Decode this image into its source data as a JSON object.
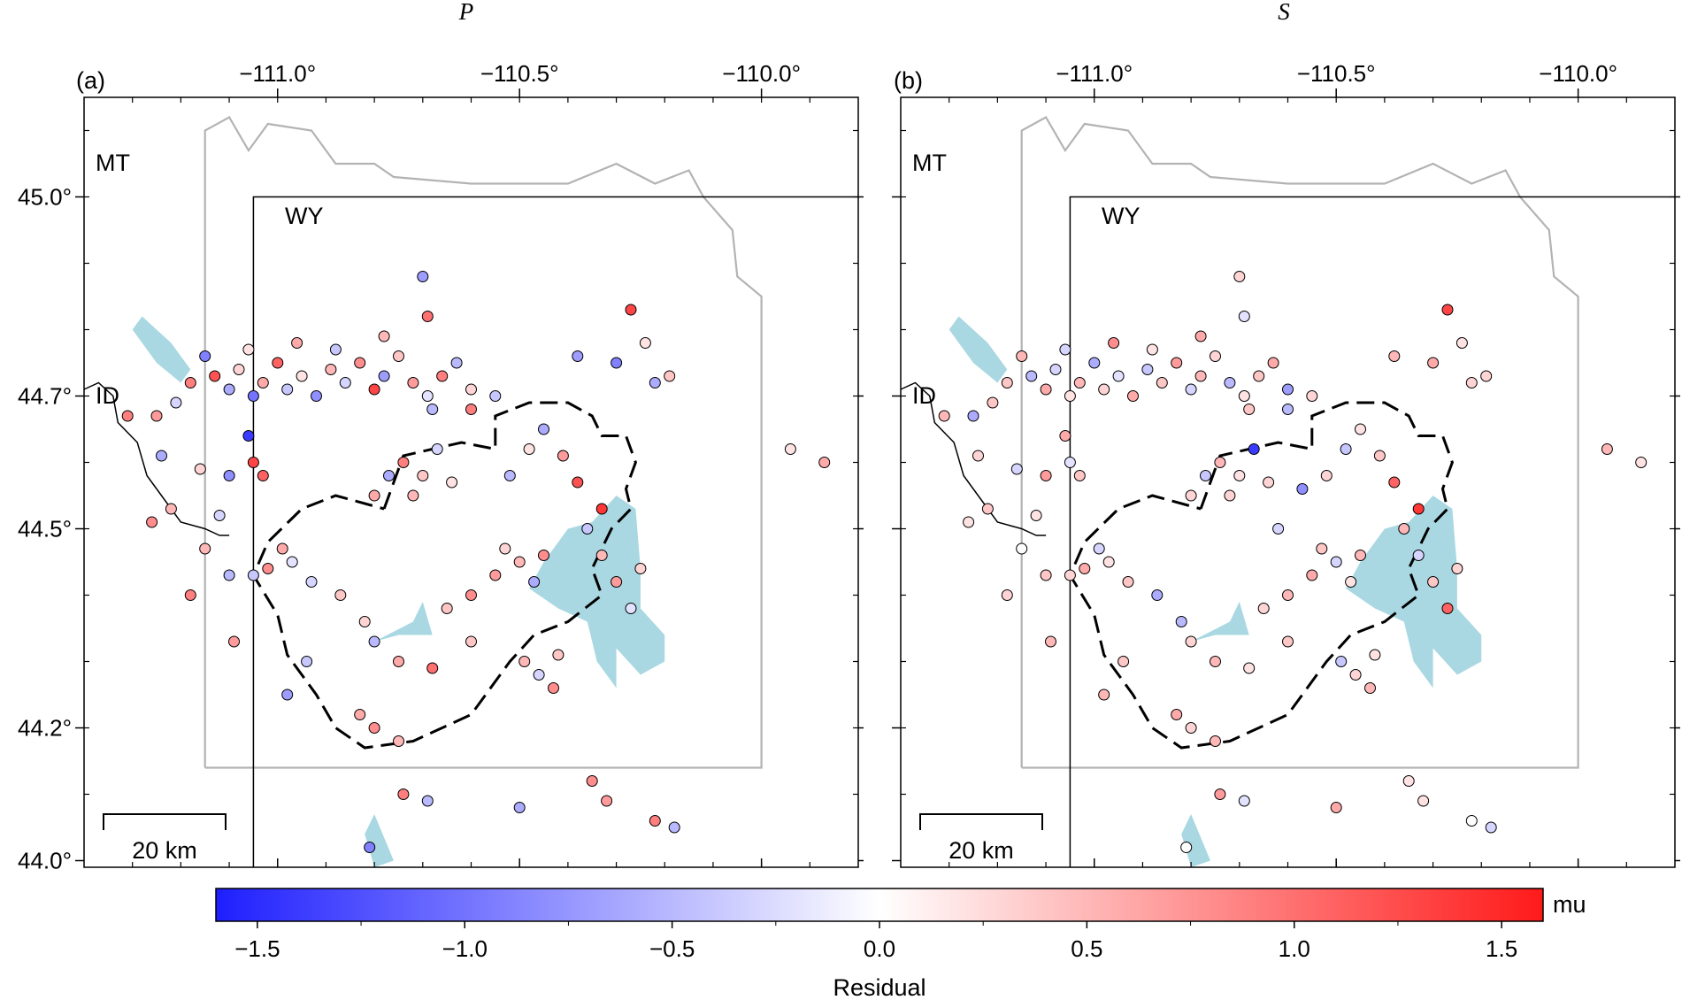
{
  "figure": {
    "panels": [
      {
        "id": "a",
        "letter": "(a)",
        "title": "P",
        "scale_bar": "20 km"
      },
      {
        "id": "b",
        "letter": "(b)",
        "title": "S",
        "scale_bar": "20 km"
      }
    ],
    "lon_ticks": [
      -111.0,
      -110.5,
      -110.0
    ],
    "lon_tick_labels": [
      "−111.0°",
      "−110.5°",
      "−110.0°"
    ],
    "lat_ticks": [
      44.0,
      44.2,
      44.5,
      44.7,
      45.0
    ],
    "lat_tick_labels": [
      "44.0°",
      "44.2°",
      "44.5°",
      "44.7°",
      "45.0°"
    ],
    "lon_range": [
      -111.4,
      -109.8
    ],
    "lat_range": [
      43.99,
      45.15
    ],
    "state_labels": {
      "mt": "MT",
      "wy": "WY",
      "id": "ID"
    },
    "colorbar": {
      "label": "Residual",
      "unit": "mu",
      "range": [
        -1.6,
        1.6
      ],
      "ticks": [
        -1.5,
        -1.0,
        -0.5,
        0.0,
        0.5,
        1.0,
        1.5
      ],
      "tick_labels": [
        "−1.5",
        "−1.0",
        "−0.5",
        "0.0",
        "0.5",
        "1.0",
        "1.5"
      ],
      "colors": {
        "negative": "#1f1fff",
        "zero": "#ffffff",
        "positive": "#ff1a1a"
      }
    },
    "colors": {
      "lake": "#a9d8e2",
      "park_boundary": "#b3b3b3",
      "state_line": "#000000",
      "caldera": "#000000"
    }
  },
  "chart_data": {
    "type": "scatter",
    "x_label": "",
    "y_label": "",
    "xlim": [
      -111.4,
      -109.8
    ],
    "ylim": [
      43.99,
      45.15
    ],
    "series": [
      {
        "name": "P",
        "points": [
          [
            -111.18,
            44.72,
            0.9
          ],
          [
            -111.13,
            44.73,
            1.2
          ],
          [
            -111.1,
            44.71,
            -0.6
          ],
          [
            -111.08,
            44.74,
            0.3
          ],
          [
            -111.05,
            44.7,
            -1.0
          ],
          [
            -111.03,
            44.72,
            0.6
          ],
          [
            -111.0,
            44.75,
            1.1
          ],
          [
            -110.98,
            44.71,
            -0.4
          ],
          [
            -110.95,
            44.73,
            0.2
          ],
          [
            -110.92,
            44.7,
            -0.8
          ],
          [
            -110.89,
            44.74,
            0.5
          ],
          [
            -110.86,
            44.72,
            -0.3
          ],
          [
            -110.83,
            44.75,
            0.8
          ],
          [
            -110.8,
            44.71,
            1.3
          ],
          [
            -110.78,
            44.73,
            -0.7
          ],
          [
            -110.75,
            44.76,
            0.4
          ],
          [
            -110.72,
            44.72,
            0.7
          ],
          [
            -110.69,
            44.7,
            -0.2
          ],
          [
            -110.66,
            44.73,
            0.9
          ],
          [
            -110.63,
            44.75,
            -0.5
          ],
          [
            -110.6,
            44.71,
            0.3
          ],
          [
            -111.15,
            44.76,
            -0.9
          ],
          [
            -111.06,
            44.77,
            0.2
          ],
          [
            -110.96,
            44.78,
            0.6
          ],
          [
            -110.88,
            44.77,
            -0.4
          ],
          [
            -110.78,
            44.79,
            0.5
          ],
          [
            -110.7,
            44.88,
            -0.7
          ],
          [
            -110.69,
            44.82,
            1.0
          ],
          [
            -111.21,
            44.69,
            -0.3
          ],
          [
            -111.25,
            44.67,
            0.7
          ],
          [
            -111.31,
            44.67,
            0.9
          ],
          [
            -111.24,
            44.61,
            -0.6
          ],
          [
            -111.22,
            44.53,
            0.5
          ],
          [
            -111.26,
            44.51,
            0.8
          ],
          [
            -111.16,
            44.59,
            0.3
          ],
          [
            -111.06,
            44.64,
            -1.4
          ],
          [
            -111.05,
            44.6,
            1.3
          ],
          [
            -111.03,
            44.58,
            1.1
          ],
          [
            -111.1,
            44.58,
            -0.8
          ],
          [
            -111.1,
            44.43,
            -0.5
          ],
          [
            -111.05,
            44.43,
            -0.4
          ],
          [
            -111.09,
            44.33,
            0.7
          ],
          [
            -111.02,
            44.44,
            0.8
          ],
          [
            -110.99,
            44.47,
            0.6
          ],
          [
            -110.97,
            44.45,
            -0.2
          ],
          [
            -110.93,
            44.42,
            -0.3
          ],
          [
            -110.98,
            44.25,
            -0.7
          ],
          [
            -110.87,
            44.4,
            0.4
          ],
          [
            -110.8,
            44.55,
            0.6
          ],
          [
            -110.77,
            44.58,
            -0.6
          ],
          [
            -110.74,
            44.6,
            0.9
          ],
          [
            -110.72,
            44.55,
            0.5
          ],
          [
            -110.7,
            44.58,
            0.4
          ],
          [
            -110.67,
            44.62,
            -0.3
          ],
          [
            -110.64,
            44.57,
            0.2
          ],
          [
            -110.82,
            44.36,
            0.3
          ],
          [
            -110.8,
            44.33,
            -0.5
          ],
          [
            -110.75,
            44.3,
            0.6
          ],
          [
            -110.68,
            44.29,
            1.0
          ],
          [
            -110.6,
            44.33,
            0.4
          ],
          [
            -110.55,
            44.43,
            0.7
          ],
          [
            -110.53,
            44.47,
            0.3
          ],
          [
            -110.5,
            44.45,
            0.5
          ],
          [
            -110.47,
            44.42,
            -0.6
          ],
          [
            -110.45,
            44.46,
            0.8
          ],
          [
            -110.49,
            44.3,
            0.5
          ],
          [
            -110.46,
            44.28,
            -0.3
          ],
          [
            -110.42,
            44.31,
            0.4
          ],
          [
            -110.43,
            44.26,
            0.8
          ],
          [
            -110.52,
            44.58,
            -0.5
          ],
          [
            -110.48,
            44.62,
            0.2
          ],
          [
            -110.45,
            44.65,
            -0.6
          ],
          [
            -110.41,
            44.61,
            0.7
          ],
          [
            -110.38,
            44.57,
            1.2
          ],
          [
            -110.33,
            44.53,
            1.4
          ],
          [
            -110.36,
            44.5,
            -0.4
          ],
          [
            -110.33,
            44.46,
            0.5
          ],
          [
            -110.3,
            44.42,
            0.7
          ],
          [
            -110.25,
            44.44,
            0.3
          ],
          [
            -110.27,
            44.38,
            -0.2
          ],
          [
            -110.19,
            44.73,
            0.4
          ],
          [
            -110.24,
            44.78,
            0.2
          ],
          [
            -110.27,
            44.83,
            1.3
          ],
          [
            -110.38,
            44.76,
            -0.7
          ],
          [
            -110.3,
            44.75,
            -0.9
          ],
          [
            -110.22,
            44.72,
            -0.6
          ],
          [
            -110.55,
            44.7,
            -0.4
          ],
          [
            -110.6,
            44.68,
            0.9
          ],
          [
            -110.68,
            44.68,
            -0.5
          ],
          [
            -110.83,
            44.22,
            0.6
          ],
          [
            -110.8,
            44.2,
            0.8
          ],
          [
            -110.75,
            44.18,
            0.5
          ],
          [
            -110.5,
            44.08,
            -0.6
          ],
          [
            -110.35,
            44.12,
            0.8
          ],
          [
            -110.22,
            44.06,
            0.9
          ],
          [
            -110.18,
            44.05,
            -0.5
          ],
          [
            -110.32,
            44.09,
            0.7
          ],
          [
            -110.74,
            44.1,
            0.9
          ],
          [
            -110.81,
            44.02,
            -0.9
          ],
          [
            -110.69,
            44.09,
            -0.5
          ],
          [
            -109.94,
            44.62,
            0.2
          ],
          [
            -109.87,
            44.6,
            0.6
          ],
          [
            -110.65,
            44.38,
            0.4
          ],
          [
            -110.6,
            44.4,
            0.8
          ],
          [
            -110.94,
            44.3,
            -0.4
          ],
          [
            -111.12,
            44.52,
            -0.3
          ],
          [
            -111.15,
            44.47,
            0.5
          ],
          [
            -111.18,
            44.4,
            0.9
          ]
        ]
      },
      {
        "name": "S",
        "points": [
          [
            -111.18,
            44.72,
            0.4
          ],
          [
            -111.13,
            44.73,
            -0.5
          ],
          [
            -111.1,
            44.71,
            0.6
          ],
          [
            -111.08,
            44.74,
            -0.3
          ],
          [
            -111.05,
            44.7,
            0.2
          ],
          [
            -111.03,
            44.72,
            0.5
          ],
          [
            -111.0,
            44.75,
            -0.6
          ],
          [
            -110.98,
            44.71,
            0.3
          ],
          [
            -110.95,
            44.73,
            -0.2
          ],
          [
            -110.92,
            44.7,
            0.6
          ],
          [
            -110.89,
            44.74,
            -0.4
          ],
          [
            -110.86,
            44.72,
            0.4
          ],
          [
            -110.83,
            44.75,
            0.7
          ],
          [
            -110.8,
            44.71,
            -0.3
          ],
          [
            -110.78,
            44.73,
            0.5
          ],
          [
            -110.75,
            44.76,
            0.3
          ],
          [
            -110.72,
            44.72,
            -0.5
          ],
          [
            -110.69,
            44.7,
            0.2
          ],
          [
            -110.66,
            44.73,
            0.4
          ],
          [
            -110.63,
            44.75,
            0.6
          ],
          [
            -110.6,
            44.71,
            -0.7
          ],
          [
            -111.15,
            44.76,
            0.5
          ],
          [
            -111.06,
            44.77,
            -0.3
          ],
          [
            -110.96,
            44.78,
            0.8
          ],
          [
            -110.88,
            44.77,
            0.2
          ],
          [
            -110.78,
            44.79,
            0.6
          ],
          [
            -110.7,
            44.88,
            0.3
          ],
          [
            -110.69,
            44.82,
            -0.2
          ],
          [
            -111.21,
            44.69,
            0.4
          ],
          [
            -111.25,
            44.67,
            -0.6
          ],
          [
            -111.31,
            44.67,
            0.5
          ],
          [
            -111.24,
            44.61,
            0.3
          ],
          [
            -111.22,
            44.53,
            0.4
          ],
          [
            -111.26,
            44.51,
            0.2
          ],
          [
            -111.16,
            44.59,
            -0.3
          ],
          [
            -111.06,
            44.64,
            0.6
          ],
          [
            -111.05,
            44.6,
            -0.2
          ],
          [
            -111.03,
            44.58,
            0.4
          ],
          [
            -111.1,
            44.58,
            0.7
          ],
          [
            -111.1,
            44.43,
            0.4
          ],
          [
            -111.05,
            44.43,
            0.3
          ],
          [
            -111.09,
            44.33,
            0.5
          ],
          [
            -111.02,
            44.44,
            0.6
          ],
          [
            -110.99,
            44.47,
            -0.3
          ],
          [
            -110.97,
            44.45,
            0.2
          ],
          [
            -110.93,
            44.42,
            0.4
          ],
          [
            -110.98,
            44.25,
            0.5
          ],
          [
            -110.87,
            44.4,
            -0.6
          ],
          [
            -110.8,
            44.55,
            0.3
          ],
          [
            -110.77,
            44.58,
            -0.4
          ],
          [
            -110.74,
            44.6,
            0.5
          ],
          [
            -110.72,
            44.55,
            0.3
          ],
          [
            -110.7,
            44.58,
            0.2
          ],
          [
            -110.67,
            44.62,
            -1.4
          ],
          [
            -110.64,
            44.57,
            0.3
          ],
          [
            -110.82,
            44.36,
            -0.5
          ],
          [
            -110.8,
            44.33,
            0.3
          ],
          [
            -110.75,
            44.3,
            0.5
          ],
          [
            -110.68,
            44.29,
            0.2
          ],
          [
            -110.6,
            44.33,
            0.4
          ],
          [
            -110.55,
            44.43,
            0.6
          ],
          [
            -110.53,
            44.47,
            0.4
          ],
          [
            -110.5,
            44.45,
            -0.3
          ],
          [
            -110.47,
            44.42,
            0.2
          ],
          [
            -110.45,
            44.46,
            0.5
          ],
          [
            -110.49,
            44.3,
            -0.4
          ],
          [
            -110.46,
            44.28,
            0.3
          ],
          [
            -110.42,
            44.31,
            0.2
          ],
          [
            -110.43,
            44.26,
            0.5
          ],
          [
            -110.52,
            44.58,
            0.3
          ],
          [
            -110.48,
            44.62,
            -0.4
          ],
          [
            -110.45,
            44.65,
            0.2
          ],
          [
            -110.41,
            44.61,
            0.4
          ],
          [
            -110.38,
            44.57,
            1.1
          ],
          [
            -110.33,
            44.53,
            1.4
          ],
          [
            -110.36,
            44.5,
            0.5
          ],
          [
            -110.33,
            44.46,
            -0.3
          ],
          [
            -110.3,
            44.42,
            0.4
          ],
          [
            -110.25,
            44.44,
            0.3
          ],
          [
            -110.27,
            44.38,
            1.1
          ],
          [
            -110.19,
            44.73,
            0.3
          ],
          [
            -110.24,
            44.78,
            0.2
          ],
          [
            -110.27,
            44.83,
            1.3
          ],
          [
            -110.38,
            44.76,
            0.5
          ],
          [
            -110.3,
            44.75,
            0.6
          ],
          [
            -110.22,
            44.72,
            0.3
          ],
          [
            -110.55,
            44.7,
            0.3
          ],
          [
            -110.6,
            44.68,
            -0.5
          ],
          [
            -110.68,
            44.68,
            0.4
          ],
          [
            -110.83,
            44.22,
            0.6
          ],
          [
            -110.8,
            44.2,
            0.3
          ],
          [
            -110.75,
            44.18,
            0.5
          ],
          [
            -110.5,
            44.08,
            0.6
          ],
          [
            -110.35,
            44.12,
            0.2
          ],
          [
            -110.22,
            44.06,
            0.0
          ],
          [
            -110.18,
            44.05,
            -0.3
          ],
          [
            -110.32,
            44.09,
            0.2
          ],
          [
            -110.74,
            44.1,
            0.7
          ],
          [
            -110.81,
            44.02,
            0.0
          ],
          [
            -110.69,
            44.09,
            -0.2
          ],
          [
            -109.94,
            44.62,
            0.5
          ],
          [
            -109.87,
            44.6,
            0.2
          ],
          [
            -110.65,
            44.38,
            0.3
          ],
          [
            -110.6,
            44.4,
            0.5
          ],
          [
            -110.94,
            44.3,
            0.4
          ],
          [
            -111.12,
            44.52,
            0.2
          ],
          [
            -111.15,
            44.47,
            0.0
          ],
          [
            -111.18,
            44.4,
            0.3
          ],
          [
            -110.57,
            44.56,
            -0.8
          ],
          [
            -110.62,
            44.5,
            -0.3
          ]
        ]
      }
    ]
  }
}
